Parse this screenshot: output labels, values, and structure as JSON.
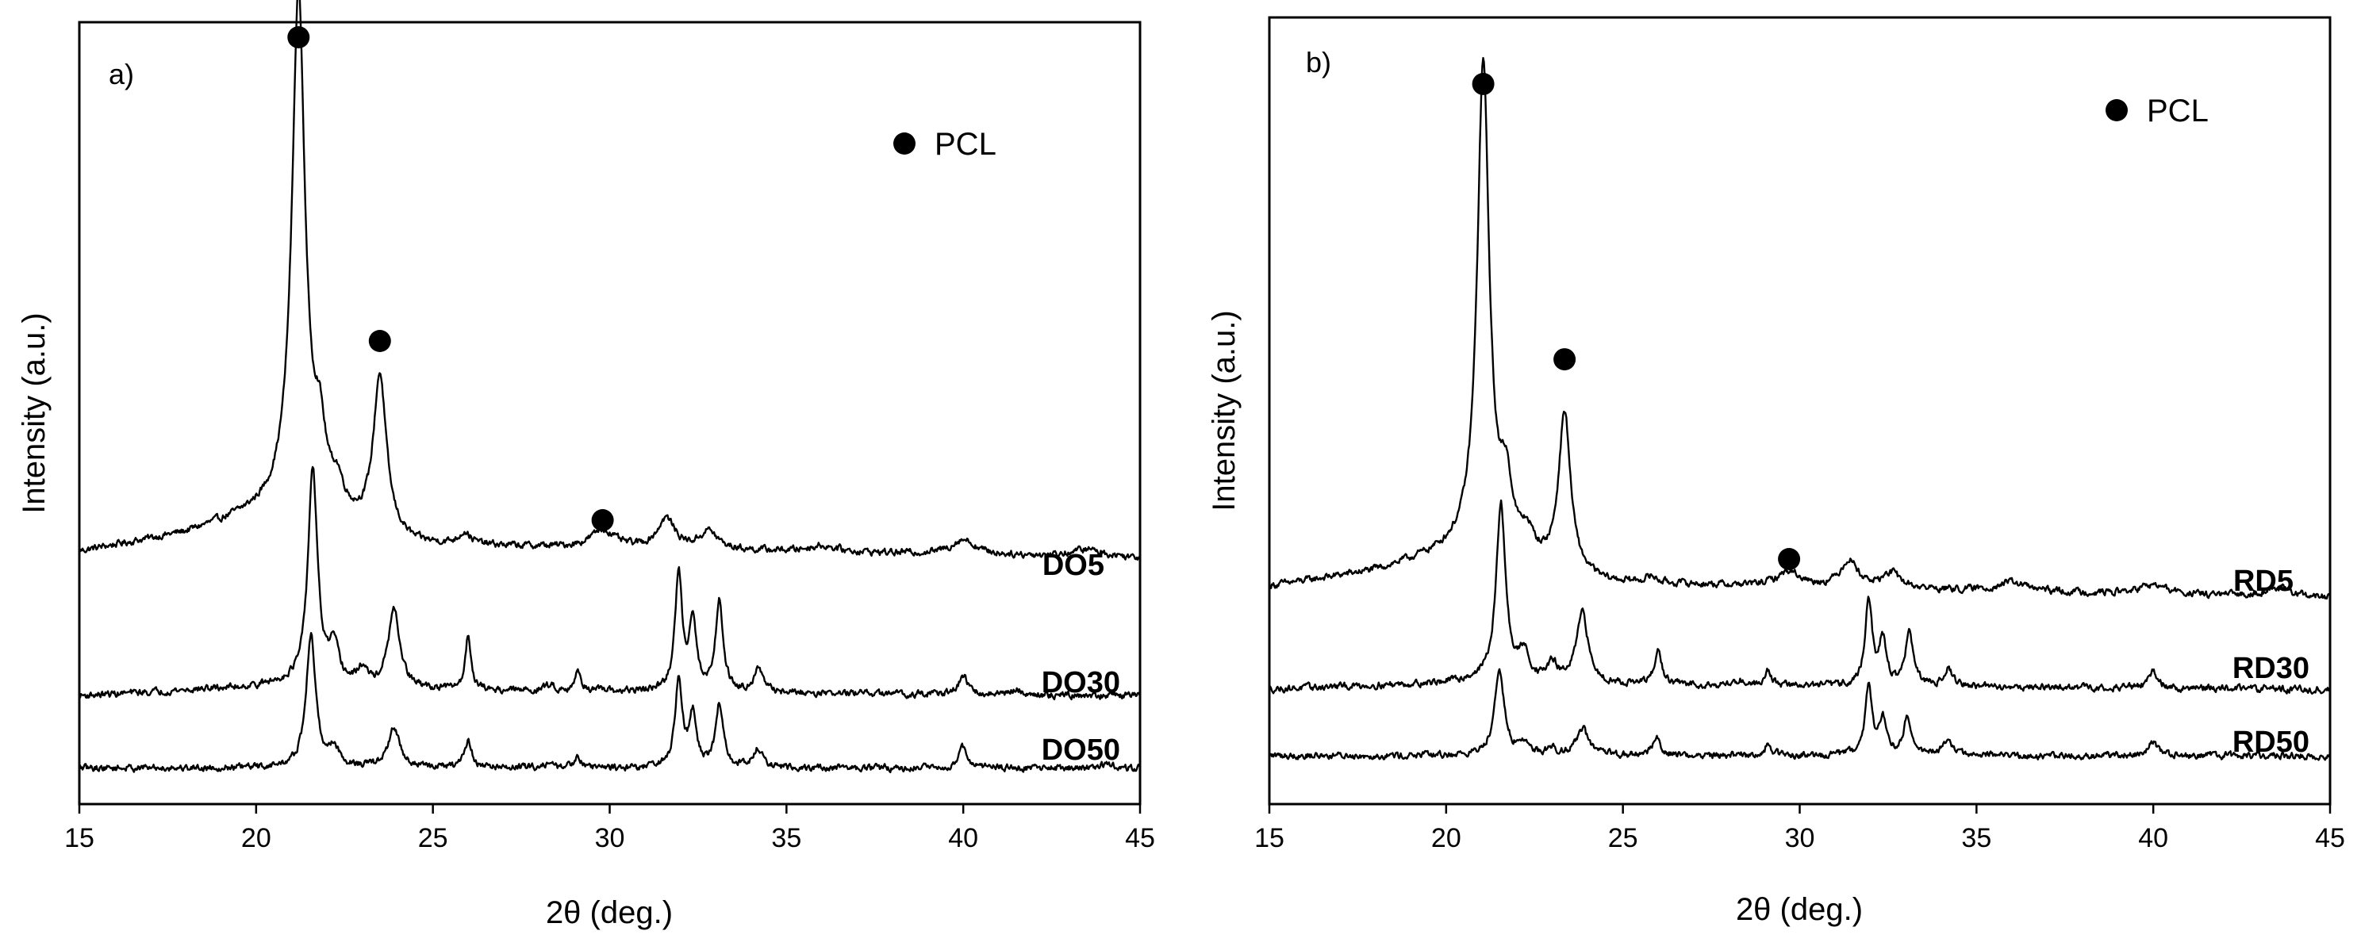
{
  "chart_data": [
    {
      "type": "line",
      "panel_label": "a)",
      "xlabel": "2θ (deg.)",
      "ylabel": "Intensity (a.u.)",
      "xlim": [
        15,
        45
      ],
      "ylim": [
        0,
        13
      ],
      "x_ticks": [
        15,
        20,
        25,
        30,
        35,
        40,
        45
      ],
      "y_ticks_shown": false,
      "grid": false,
      "legend": {
        "marker": "filled-circle",
        "label": "PCL",
        "placement": "top-right"
      },
      "series": [
        {
          "name": "DO5",
          "baseline": 4.2,
          "ramp": [
            [
              15,
              0
            ],
            [
              18,
              0.3
            ],
            [
              20.4,
              0.7
            ],
            [
              21.0,
              0.9
            ],
            [
              22.8,
              0.4
            ],
            [
              24.5,
              0.1
            ],
            [
              45,
              -0.1
            ]
          ],
          "peaks": [
            {
              "x": 21.2,
              "height": 8.4,
              "width": 0.22
            },
            {
              "x": 21.8,
              "height": 1.0,
              "width": 0.2
            },
            {
              "x": 22.3,
              "height": 0.4,
              "width": 0.2
            },
            {
              "x": 23.5,
              "height": 2.6,
              "width": 0.22
            },
            {
              "x": 25.9,
              "height": 0.2,
              "width": 0.2
            },
            {
              "x": 29.8,
              "height": 0.3,
              "width": 0.4
            },
            {
              "x": 31.6,
              "height": 0.5,
              "width": 0.3
            },
            {
              "x": 32.8,
              "height": 0.3,
              "width": 0.3
            },
            {
              "x": 36.0,
              "height": 0.1,
              "width": 0.5
            },
            {
              "x": 40.0,
              "height": 0.25,
              "width": 0.4
            },
            {
              "x": 43.5,
              "height": 0.12,
              "width": 0.5
            }
          ]
        },
        {
          "name": "DO30",
          "baseline": 1.8,
          "ramp": [
            [
              15,
              0
            ],
            [
              20,
              0.15
            ],
            [
              21.0,
              0.2
            ],
            [
              23,
              0.1
            ],
            [
              45,
              0
            ]
          ],
          "peaks": [
            {
              "x": 21.6,
              "height": 3.6,
              "width": 0.16
            },
            {
              "x": 22.2,
              "height": 0.6,
              "width": 0.18
            },
            {
              "x": 23.0,
              "height": 0.3,
              "width": 0.18
            },
            {
              "x": 23.9,
              "height": 1.3,
              "width": 0.2
            },
            {
              "x": 26.0,
              "height": 0.9,
              "width": 0.1
            },
            {
              "x": 28.3,
              "height": 0.1,
              "width": 0.15
            },
            {
              "x": 29.1,
              "height": 0.3,
              "width": 0.12
            },
            {
              "x": 31.95,
              "height": 1.95,
              "width": 0.12
            },
            {
              "x": 32.35,
              "height": 1.2,
              "width": 0.12
            },
            {
              "x": 33.1,
              "height": 1.5,
              "width": 0.13
            },
            {
              "x": 34.2,
              "height": 0.4,
              "width": 0.15
            },
            {
              "x": 40.0,
              "height": 0.3,
              "width": 0.15
            },
            {
              "x": 41.5,
              "height": 0.08,
              "width": 0.2
            }
          ]
        },
        {
          "name": "DO50",
          "baseline": 0.6,
          "ramp": [
            [
              15,
              0
            ],
            [
              45,
              0
            ]
          ],
          "peaks": [
            {
              "x": 21.55,
              "height": 2.2,
              "width": 0.16
            },
            {
              "x": 22.2,
              "height": 0.3,
              "width": 0.18
            },
            {
              "x": 23.9,
              "height": 0.65,
              "width": 0.2
            },
            {
              "x": 26.0,
              "height": 0.45,
              "width": 0.12
            },
            {
              "x": 28.2,
              "height": 0.07,
              "width": 0.15
            },
            {
              "x": 29.1,
              "height": 0.2,
              "width": 0.12
            },
            {
              "x": 31.95,
              "height": 1.45,
              "width": 0.12
            },
            {
              "x": 32.35,
              "height": 0.85,
              "width": 0.12
            },
            {
              "x": 33.1,
              "height": 1.05,
              "width": 0.13
            },
            {
              "x": 34.2,
              "height": 0.3,
              "width": 0.15
            },
            {
              "x": 40.0,
              "height": 0.35,
              "width": 0.15
            },
            {
              "x": 44.0,
              "height": 0.05,
              "width": 0.2
            }
          ]
        }
      ],
      "pcl_markers": [
        {
          "x": 21.2,
          "y": 12.75
        },
        {
          "x": 23.5,
          "y": 7.7
        },
        {
          "x": 29.8,
          "y": 4.72
        }
      ]
    },
    {
      "type": "line",
      "panel_label": "b)",
      "xlabel": "2θ (deg.)",
      "ylabel": "Intensity (a.u.)",
      "xlim": [
        15,
        45
      ],
      "ylim": [
        0,
        13
      ],
      "x_ticks": [
        15,
        20,
        25,
        30,
        35,
        40,
        45
      ],
      "y_ticks_shown": false,
      "grid": false,
      "legend": {
        "marker": "filled-circle",
        "label": "PCL",
        "placement": "top-right"
      },
      "series": [
        {
          "name": "RD5",
          "baseline": 3.6,
          "ramp": [
            [
              15,
              0
            ],
            [
              18,
              0.25
            ],
            [
              20.3,
              0.6
            ],
            [
              20.9,
              0.75
            ],
            [
              22.5,
              0.35
            ],
            [
              24.5,
              0.05
            ],
            [
              45,
              -0.2
            ]
          ],
          "peaks": [
            {
              "x": 21.05,
              "height": 7.9,
              "width": 0.2
            },
            {
              "x": 21.7,
              "height": 1.0,
              "width": 0.2
            },
            {
              "x": 22.3,
              "height": 0.35,
              "width": 0.2
            },
            {
              "x": 23.35,
              "height": 2.6,
              "width": 0.2
            },
            {
              "x": 25.8,
              "height": 0.1,
              "width": 0.2
            },
            {
              "x": 29.7,
              "height": 0.25,
              "width": 0.4
            },
            {
              "x": 31.4,
              "height": 0.45,
              "width": 0.3
            },
            {
              "x": 32.6,
              "height": 0.25,
              "width": 0.3
            },
            {
              "x": 36.0,
              "height": 0.15,
              "width": 0.5
            },
            {
              "x": 40.0,
              "height": 0.15,
              "width": 0.5
            },
            {
              "x": 43.5,
              "height": 0.15,
              "width": 0.5
            }
          ]
        },
        {
          "name": "RD30",
          "baseline": 1.9,
          "ramp": [
            [
              15,
              0
            ],
            [
              20,
              0.1
            ],
            [
              21.0,
              0.15
            ],
            [
              23,
              0.08
            ],
            [
              45,
              0
            ]
          ],
          "peaks": [
            {
              "x": 21.55,
              "height": 2.9,
              "width": 0.16
            },
            {
              "x": 22.2,
              "height": 0.45,
              "width": 0.18
            },
            {
              "x": 23.0,
              "height": 0.3,
              "width": 0.18
            },
            {
              "x": 23.85,
              "height": 1.15,
              "width": 0.2
            },
            {
              "x": 26.0,
              "height": 0.55,
              "width": 0.12
            },
            {
              "x": 28.3,
              "height": 0.08,
              "width": 0.15
            },
            {
              "x": 29.1,
              "height": 0.25,
              "width": 0.12
            },
            {
              "x": 31.95,
              "height": 1.4,
              "width": 0.12
            },
            {
              "x": 32.35,
              "height": 0.75,
              "width": 0.12
            },
            {
              "x": 33.1,
              "height": 0.9,
              "width": 0.13
            },
            {
              "x": 34.2,
              "height": 0.3,
              "width": 0.15
            },
            {
              "x": 40.0,
              "height": 0.28,
              "width": 0.15
            }
          ]
        },
        {
          "name": "RD50",
          "baseline": 0.8,
          "ramp": [
            [
              15,
              0
            ],
            [
              45,
              0
            ]
          ],
          "peaks": [
            {
              "x": 21.5,
              "height": 1.45,
              "width": 0.16
            },
            {
              "x": 22.2,
              "height": 0.2,
              "width": 0.18
            },
            {
              "x": 23.0,
              "height": 0.1,
              "width": 0.18
            },
            {
              "x": 23.85,
              "height": 0.45,
              "width": 0.2
            },
            {
              "x": 25.95,
              "height": 0.3,
              "width": 0.13
            },
            {
              "x": 29.1,
              "height": 0.17,
              "width": 0.13
            },
            {
              "x": 31.95,
              "height": 1.1,
              "width": 0.12
            },
            {
              "x": 32.35,
              "height": 0.6,
              "width": 0.12
            },
            {
              "x": 33.05,
              "height": 0.65,
              "width": 0.13
            },
            {
              "x": 34.2,
              "height": 0.27,
              "width": 0.15
            },
            {
              "x": 40.0,
              "height": 0.23,
              "width": 0.15
            }
          ]
        }
      ],
      "pcl_markers": [
        {
          "x": 21.05,
          "y": 11.9
        },
        {
          "x": 23.35,
          "y": 7.35
        },
        {
          "x": 29.7,
          "y": 4.05
        }
      ]
    }
  ]
}
